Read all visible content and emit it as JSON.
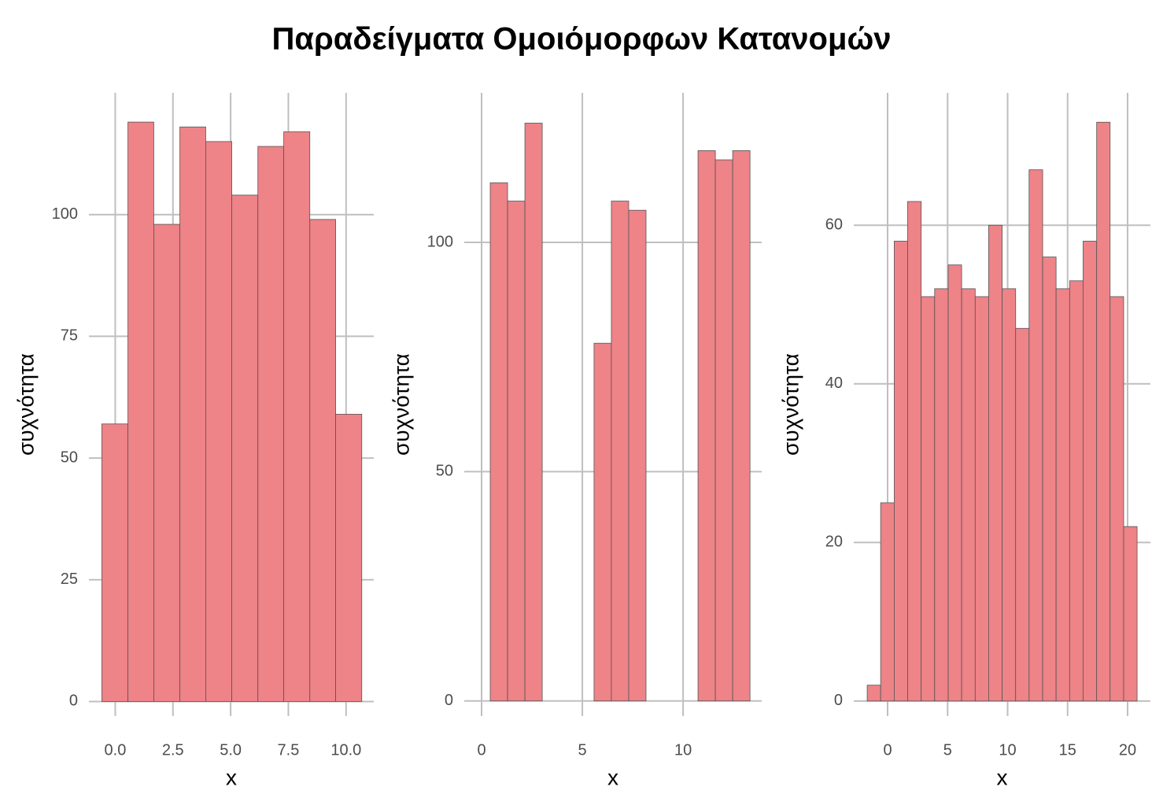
{
  "title": "Παραδείγματα Ομοιόμορφων Κατανομών",
  "chart_data": [
    {
      "type": "histogram",
      "xlabel": "x",
      "ylabel": "συχνότητα",
      "color": "#ee8388",
      "grid": true,
      "bins": [
        -0.58,
        0.55,
        1.67,
        2.8,
        3.92,
        5.05,
        6.18,
        7.3,
        8.43,
        9.55,
        10.68
      ],
      "values": [
        57,
        119,
        98,
        118,
        115,
        104,
        114,
        117,
        99,
        59
      ],
      "xlim": [
        -1.14,
        11.2
      ],
      "ylim": [
        -3,
        125
      ],
      "xticks": [
        {
          "value": 0,
          "label": "0.0"
        },
        2.5,
        {
          "value": 5,
          "label": "5.0"
        },
        7.5,
        {
          "value": 10,
          "label": "10.0"
        }
      ],
      "yticks": [
        0,
        25,
        50,
        75,
        100
      ]
    },
    {
      "type": "histogram",
      "xlabel": "x",
      "ylabel": "συχνότητα",
      "color": "#ee8388",
      "grid": true,
      "bins": [
        0.43,
        1.29,
        2.15,
        3.01,
        3.87,
        4.73,
        5.58,
        6.44,
        7.3,
        8.16,
        9.02,
        9.88,
        10.74,
        11.6,
        12.46,
        13.32
      ],
      "values": [
        113,
        109,
        126,
        0,
        0,
        0,
        78,
        109,
        107,
        0,
        0,
        0,
        120,
        118,
        120
      ],
      "xlim": [
        -0.86,
        13.9
      ],
      "ylim": [
        -3.3,
        132.6
      ],
      "xticks": [
        0,
        5,
        10
      ],
      "yticks": [
        0,
        50,
        100
      ]
    },
    {
      "type": "histogram",
      "xlabel": "x",
      "ylabel": "συχνότητα",
      "color": "#ee8388",
      "grid": true,
      "bins": [
        -1.7,
        -0.58,
        0.55,
        1.67,
        2.8,
        3.92,
        5.05,
        6.17,
        7.3,
        8.42,
        9.55,
        10.67,
        11.79,
        12.92,
        14.04,
        15.17,
        16.29,
        17.42,
        18.54,
        19.67,
        20.79
      ],
      "values": [
        2,
        25,
        58,
        63,
        51,
        52,
        55,
        52,
        51,
        60,
        52,
        47,
        67,
        56,
        52,
        53,
        58,
        73,
        51,
        22
      ],
      "xlim": [
        -2.82,
        21.9
      ],
      "ylim": [
        -1.9,
        76.7
      ],
      "xticks": [
        0,
        5,
        10,
        15,
        20
      ],
      "yticks": [
        0,
        20,
        40,
        60
      ]
    }
  ]
}
